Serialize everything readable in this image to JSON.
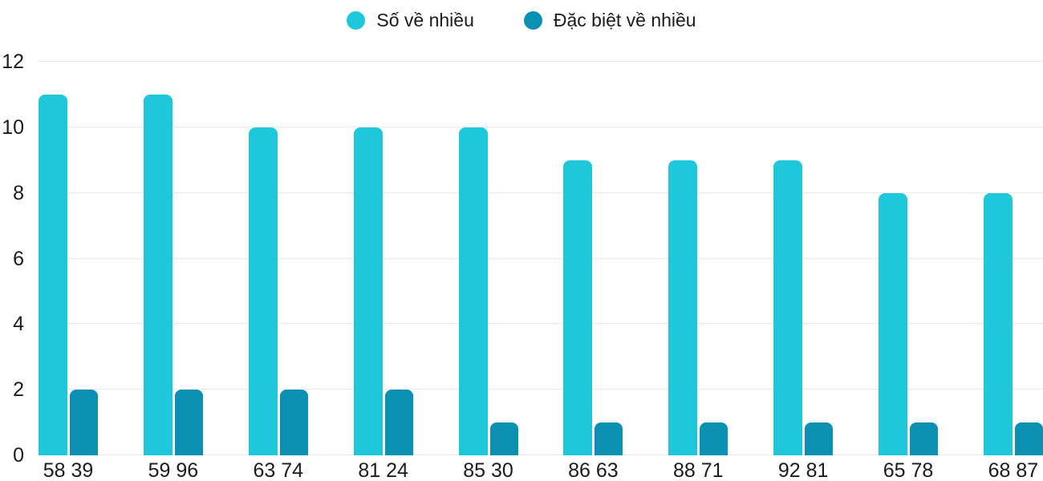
{
  "chart_data": {
    "type": "bar",
    "title": "",
    "xlabel": "",
    "ylabel": "",
    "categories": [
      "58 39",
      "59 96",
      "63 74",
      "81 24",
      "85 30",
      "86 63",
      "88 71",
      "92 81",
      "65 78",
      "68 87"
    ],
    "series": [
      {
        "name": "Số về nhiều",
        "color": "#1ec8da",
        "values": [
          11,
          11,
          10,
          10,
          10,
          9,
          9,
          9,
          8,
          8
        ]
      },
      {
        "name": "Đặc biệt về nhiều",
        "color": "#0990b2",
        "values": [
          2,
          2,
          2,
          2,
          1,
          1,
          1,
          1,
          1,
          1
        ]
      }
    ],
    "y_ticks": [
      0,
      2,
      4,
      6,
      8,
      10,
      12
    ],
    "ylim": [
      0,
      12
    ],
    "grid": true,
    "legend_position": "top-center"
  },
  "style": {
    "series_colors": [
      "#1ec8da",
      "#0990b2"
    ],
    "grid_color": "#e8e8e8",
    "axis_text_color": "#1b1b1b",
    "background": "#ffffff"
  }
}
